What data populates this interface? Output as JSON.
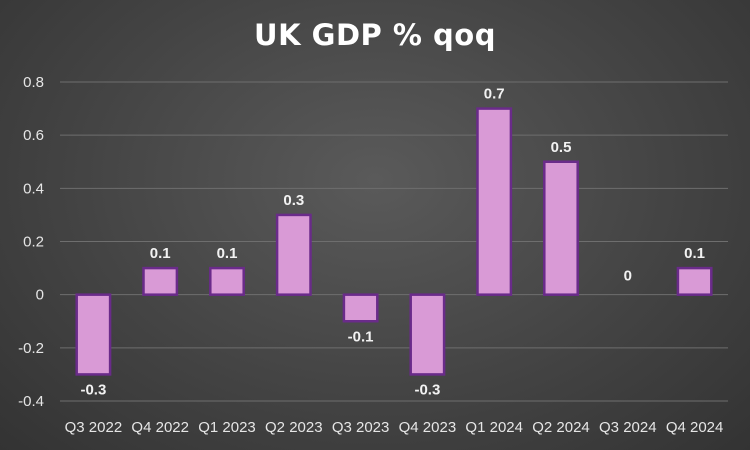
{
  "chart_data": {
    "type": "bar",
    "title": "UK GDP % qoq",
    "categories": [
      "Q3 2022",
      "Q4 2022",
      "Q1 2023",
      "Q2 2023",
      "Q3 2023",
      "Q4 2023",
      "Q1 2024",
      "Q2 2024",
      "Q3 2024",
      "Q4 2024"
    ],
    "values": [
      -0.3,
      0.1,
      0.1,
      0.3,
      -0.1,
      -0.3,
      0.7,
      0.5,
      0,
      0.1
    ],
    "data_labels": [
      "-0.3",
      "0.1",
      "0.1",
      "0.3",
      "-0.1",
      "-0.3",
      "0.7",
      "0.5",
      "0",
      "0.1"
    ],
    "yticks": [
      "0.8",
      "0.6",
      "0.4",
      "0.2",
      "0",
      "-0.2",
      "-0.4"
    ],
    "ytick_values": [
      0.8,
      0.6,
      0.4,
      0.2,
      0,
      -0.2,
      -0.4
    ],
    "ylim": [
      -0.4,
      0.8
    ],
    "xlabel": "",
    "ylabel": "",
    "grid": true,
    "legend": "none"
  },
  "colors": {
    "bar_fill": "#d99ad6",
    "bar_stroke": "#6a2b8a",
    "gridline": "#6e6e6e"
  }
}
